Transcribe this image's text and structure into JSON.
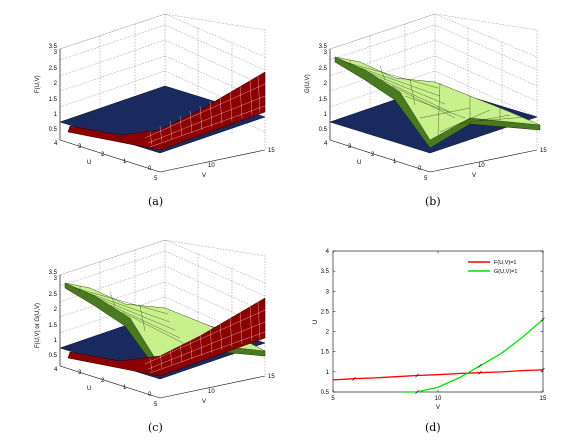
{
  "captions": {
    "a": "(a)",
    "b": "(b)",
    "c": "(c)",
    "d": "(d)"
  },
  "panels": {
    "a": {
      "zlabel": "F(U,V)",
      "xlabel": "V",
      "ylabel": "U",
      "zticks": [
        "0.5",
        "1",
        "1.5",
        "2",
        "2.5",
        "3",
        "3.5"
      ],
      "vticks": [
        "5",
        "10",
        "15"
      ],
      "uticks": [
        "0",
        "1",
        "2",
        "3",
        "4"
      ]
    },
    "b": {
      "zlabel": "G(U,V)",
      "xlabel": "V",
      "ylabel": "U",
      "zticks": [
        "0.5",
        "1",
        "1.5",
        "2",
        "2.5",
        "3",
        "3.5"
      ],
      "vticks": [
        "5",
        "10",
        "15"
      ],
      "uticks": [
        "0",
        "1",
        "2",
        "3",
        "4"
      ]
    },
    "c": {
      "zlabel": "F(U,V) or G(U,V)",
      "xlabel": "V",
      "ylabel": "U",
      "zticks": [
        "0.5",
        "1",
        "1.5",
        "2",
        "2.5",
        "3",
        "3.5"
      ],
      "vticks": [
        "5",
        "10",
        "15"
      ],
      "uticks": [
        "0",
        "1",
        "2",
        "3",
        "4"
      ]
    }
  },
  "colors": {
    "F_surface": "#8b0000",
    "G_surface": "#e0ffb0",
    "plane": "#1a2a5e",
    "F_line": "#ff0000",
    "G_line": "#00e000"
  },
  "chart_data": [
    {
      "type": "surface",
      "panel": "a",
      "zlabel": "F(U,V)",
      "xlabel": "V",
      "ylabel": "U",
      "xlim": [
        5,
        15
      ],
      "ylim": [
        0,
        4
      ],
      "zlim": [
        0.5,
        3.5
      ],
      "series": [
        {
          "name": "F(U,V)"
        },
        {
          "name": "plane z=1"
        }
      ]
    },
    {
      "type": "surface",
      "panel": "b",
      "zlabel": "G(U,V)",
      "xlabel": "V",
      "ylabel": "U",
      "xlim": [
        5,
        15
      ],
      "ylim": [
        0,
        4
      ],
      "zlim": [
        0.5,
        3.5
      ],
      "series": [
        {
          "name": "G(U,V)"
        },
        {
          "name": "plane z=1"
        }
      ]
    },
    {
      "type": "surface",
      "panel": "c",
      "zlabel": "F(U,V) or G(U,V)",
      "xlabel": "V",
      "ylabel": "U",
      "xlim": [
        5,
        15
      ],
      "ylim": [
        0,
        4
      ],
      "zlim": [
        0.5,
        3.5
      ],
      "series": [
        {
          "name": "F(U,V)"
        },
        {
          "name": "G(U,V)"
        },
        {
          "name": "plane z=1"
        }
      ]
    },
    {
      "type": "line",
      "panel": "d",
      "xlabel": "V",
      "ylabel": "U",
      "xlim": [
        5,
        15
      ],
      "ylim": [
        0.5,
        4
      ],
      "xticks": [
        5,
        10,
        15
      ],
      "yticks": [
        0.5,
        1,
        1.5,
        2,
        2.5,
        3,
        3.5,
        4
      ],
      "legend_position": "top-right",
      "grid": false,
      "series": [
        {
          "name": "F(U,V)=1",
          "color": "#ff0000",
          "x": [
            5,
            6,
            7,
            8,
            9,
            10,
            11,
            12,
            13,
            14,
            15
          ],
          "y": [
            0.8,
            0.83,
            0.85,
            0.88,
            0.91,
            0.93,
            0.96,
            0.98,
            1.0,
            1.03,
            1.05
          ]
        },
        {
          "name": "G(U,V)=1",
          "color": "#00e000",
          "x": [
            8.4,
            9,
            10,
            11,
            12,
            13,
            14,
            15
          ],
          "y": [
            0.3,
            0.42,
            0.62,
            0.85,
            1.15,
            1.45,
            1.85,
            2.3
          ]
        }
      ]
    }
  ]
}
